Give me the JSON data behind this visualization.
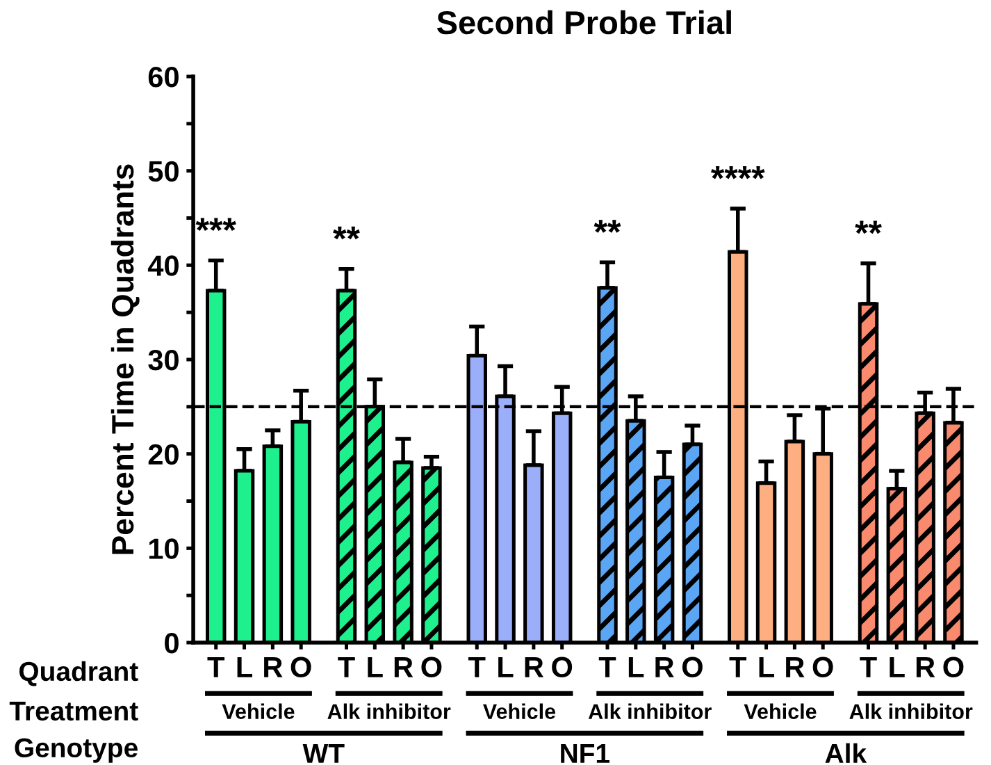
{
  "chart_data": {
    "type": "bar",
    "title": "Second Probe Trial",
    "ylabel": "Percent Time in Quadrants",
    "categories": [
      "T",
      "L",
      "R",
      "O",
      "T",
      "L",
      "R",
      "O",
      "T",
      "L",
      "R",
      "O",
      "T",
      "L",
      "R",
      "O",
      "T",
      "L",
      "R",
      "O",
      "T",
      "L",
      "R",
      "O"
    ],
    "values": [
      37.3,
      18.2,
      20.8,
      23.4,
      37.3,
      25.0,
      19.1,
      18.5,
      30.4,
      26.1,
      18.8,
      24.3,
      37.6,
      23.5,
      17.5,
      21.0,
      41.4,
      16.9,
      21.3,
      20.0,
      35.9,
      16.3,
      24.3,
      23.3
    ],
    "errors": [
      [
        37.3,
        40.5
      ],
      [
        18.2,
        20.5
      ],
      [
        20.8,
        22.5
      ],
      [
        23.4,
        26.7
      ],
      [
        37.3,
        39.6
      ],
      [
        25.0,
        27.9
      ],
      [
        19.1,
        21.6
      ],
      [
        18.5,
        19.7
      ],
      [
        30.4,
        33.5
      ],
      [
        26.1,
        29.3
      ],
      [
        18.8,
        22.4
      ],
      [
        24.3,
        27.1
      ],
      [
        37.6,
        40.3
      ],
      [
        23.5,
        26.1
      ],
      [
        17.5,
        20.2
      ],
      [
        21.0,
        23.0
      ],
      [
        41.4,
        46.0
      ],
      [
        16.9,
        19.2
      ],
      [
        21.3,
        24.1
      ],
      [
        20.0,
        24.8
      ],
      [
        35.9,
        40.2
      ],
      [
        16.3,
        18.2
      ],
      [
        24.3,
        26.5
      ],
      [
        23.3,
        26.9
      ]
    ],
    "colors": [
      "#1ef08e",
      "#1ef08e",
      "#1ef08e",
      "#1ef08e",
      "#1ef08e",
      "#1ef08e",
      "#1ef08e",
      "#1ef08e",
      "#9aaef9",
      "#9aaef9",
      "#9aaef9",
      "#9aaef9",
      "#5aa6f5",
      "#5aa6f5",
      "#5aa6f5",
      "#5aa6f5",
      "#fdaf82",
      "#fdaf82",
      "#fdaf82",
      "#fdaf82",
      "#f98a6e",
      "#f98a6e",
      "#f98a6e",
      "#f98a6e"
    ],
    "value_labels": [
      "***",
      null,
      null,
      null,
      "**",
      null,
      null,
      null,
      null,
      null,
      null,
      null,
      "**",
      null,
      null,
      null,
      "****",
      null,
      null,
      null,
      "**",
      null,
      null,
      null
    ],
    "ylim": [
      0,
      60
    ],
    "yticks": [
      0,
      {
        "value": 5,
        "label": null
      },
      10,
      {
        "value": 15,
        "label": null
      },
      20,
      {
        "value": 25,
        "label": null
      },
      30,
      {
        "value": 35,
        "label": null
      },
      40,
      {
        "value": 45,
        "label": null
      },
      50,
      {
        "value": 55,
        "label": null
      },
      60
    ],
    "ref_lines": [
      {
        "axis": "y",
        "value": 25,
        "line_style": "dashed",
        "color": "#000000"
      }
    ],
    "grid": false,
    "annotations": [
      "Quadrant",
      "Treatment",
      "Genotype",
      "Vehicle",
      "Alk inhibitor",
      "Vehicle",
      "Alk inhibitor",
      "Vehicle",
      "Alk inhibitor",
      "WT",
      "NF1",
      "Alk"
    ]
  }
}
